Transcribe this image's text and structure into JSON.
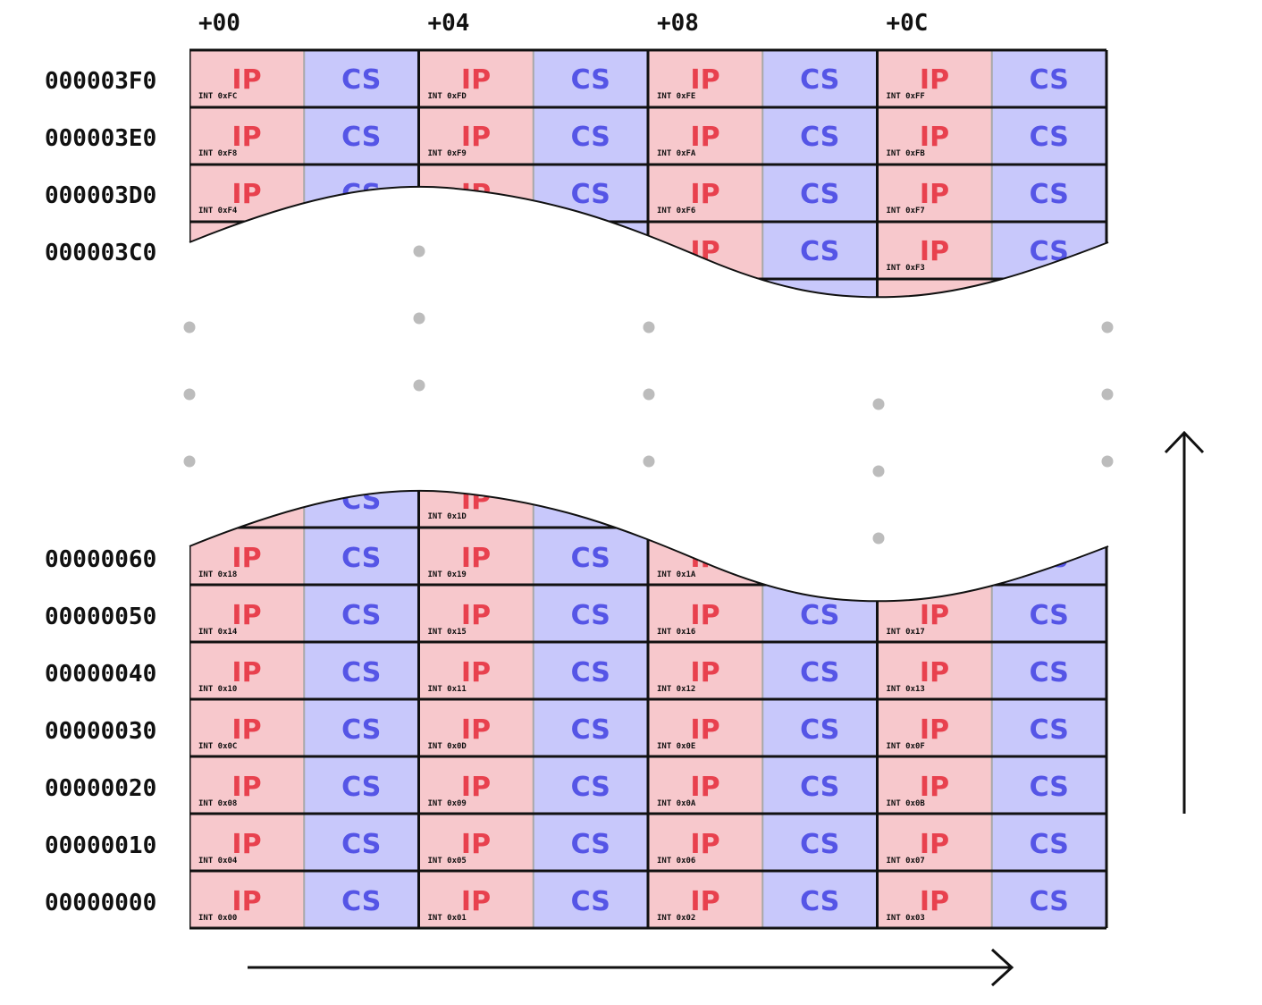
{
  "diagram": {
    "column_offsets": [
      "+00",
      "+04",
      "+08",
      "+0C"
    ],
    "cell_labels": {
      "ip": "IP",
      "cs": "CS"
    },
    "colors": {
      "ip_fill": "#f7c8cc",
      "cs_fill": "#c8c8fb",
      "ip_text": "#e8414e",
      "cs_text": "#5555e6",
      "grid_line": "#111111",
      "cell_divider": "#a8a8a8",
      "ellipsis_dot": "#bcbcbc",
      "arrow": "#111111"
    },
    "top_rows": [
      {
        "address": "000003F0",
        "ints": [
          "INT 0xFC",
          "INT 0xFD",
          "INT 0xFE",
          "INT 0xFF"
        ]
      },
      {
        "address": "000003E0",
        "ints": [
          "INT 0xF8",
          "INT 0xF9",
          "INT 0xFA",
          "INT 0xFB"
        ]
      },
      {
        "address": "000003D0",
        "ints": [
          "INT 0xF4",
          "",
          "INT 0xF6",
          "INT 0xF7"
        ]
      },
      {
        "address": "000003C0",
        "ints": [
          "",
          "",
          "",
          "INT 0xF3"
        ]
      }
    ],
    "partial_row": {
      "ints": [
        "",
        "INT 0x1D",
        "",
        ""
      ]
    },
    "bottom_rows": [
      {
        "address": "00000060",
        "ints": [
          "INT 0x18",
          "INT 0x19",
          "INT 0x1A",
          ""
        ]
      },
      {
        "address": "00000050",
        "ints": [
          "INT 0x14",
          "INT 0x15",
          "INT 0x16",
          "INT 0x17"
        ]
      },
      {
        "address": "00000040",
        "ints": [
          "INT 0x10",
          "INT 0x11",
          "INT 0x12",
          "INT 0x13"
        ]
      },
      {
        "address": "00000030",
        "ints": [
          "INT 0x0C",
          "INT 0x0D",
          "INT 0x0E",
          "INT 0x0F"
        ]
      },
      {
        "address": "00000020",
        "ints": [
          "INT 0x08",
          "INT 0x09",
          "INT 0x0A",
          "INT 0x0B"
        ]
      },
      {
        "address": "00000010",
        "ints": [
          "INT 0x04",
          "INT 0x05",
          "INT 0x06",
          "INT 0x07"
        ]
      },
      {
        "address": "00000000",
        "ints": [
          "INT 0x00",
          "INT 0x01",
          "INT 0x02",
          "INT 0x03"
        ]
      }
    ]
  }
}
